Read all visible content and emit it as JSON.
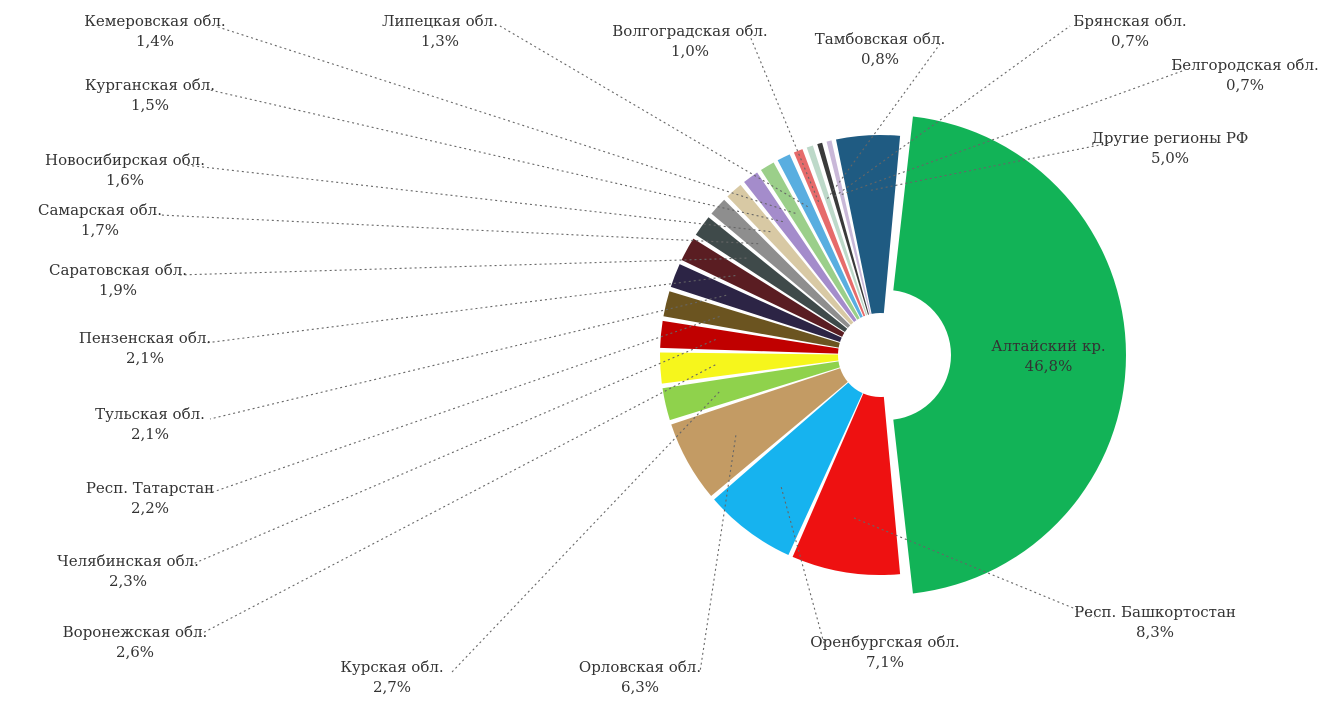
{
  "chart_data": {
    "type": "pie",
    "title": "",
    "slices": [
      {
        "label": "Алтайский кр.",
        "value": 46.8,
        "value_text": "46,8%",
        "color": "#12b357"
      },
      {
        "label": "Респ. Башкортостан",
        "value": 8.3,
        "value_text": "8,3%",
        "color": "#ee1111"
      },
      {
        "label": "Оренбургская обл.",
        "value": 7.1,
        "value_text": "7,1%",
        "color": "#16b3ef"
      },
      {
        "label": "Орловская обл.",
        "value": 6.3,
        "value_text": "6,3%",
        "color": "#c39b64"
      },
      {
        "label": "Курская обл.",
        "value": 2.7,
        "value_text": "2,7%",
        "color": "#8fd24c"
      },
      {
        "label": "Воронежская обл.",
        "value": 2.6,
        "value_text": "2,6%",
        "color": "#f6f61c"
      },
      {
        "label": "Челябинская обл.",
        "value": 2.3,
        "value_text": "2,3%",
        "color": "#c00000"
      },
      {
        "label": "Респ. Татарстан",
        "value": 2.2,
        "value_text": "2,2%",
        "color": "#6b5420"
      },
      {
        "label": "Тульская обл.",
        "value": 2.1,
        "value_text": "2,1%",
        "color": "#2c2445"
      },
      {
        "label": "Пензенская обл.",
        "value": 2.1,
        "value_text": "2,1%",
        "color": "#5a1d22"
      },
      {
        "label": "Саратовская обл.",
        "value": 1.9,
        "value_text": "1,9%",
        "color": "#3f4a4a"
      },
      {
        "label": "Самарская обл.",
        "value": 1.7,
        "value_text": "1,7%",
        "color": "#8e8e8e"
      },
      {
        "label": "Новосибирская обл.",
        "value": 1.6,
        "value_text": "1,6%",
        "color": "#d8c9a4"
      },
      {
        "label": "Курганская обл.",
        "value": 1.5,
        "value_text": "1,5%",
        "color": "#a48ccb"
      },
      {
        "label": "Кемеровская обл.",
        "value": 1.4,
        "value_text": "1,4%",
        "color": "#9bcf8a"
      },
      {
        "label": "Липецкая обл.",
        "value": 1.3,
        "value_text": "1,3%",
        "color": "#59aee0"
      },
      {
        "label": "Волгоградская обл.",
        "value": 1.0,
        "value_text": "1,0%",
        "color": "#e66b6b"
      },
      {
        "label": "Тамбовская обл.",
        "value": 0.8,
        "value_text": "0,8%",
        "color": "#bdd9c9"
      },
      {
        "label": "Брянская обл.",
        "value": 0.7,
        "value_text": "0,7%",
        "color": "#3a3a3a"
      },
      {
        "label": "Белгородская обл.",
        "value": 0.7,
        "value_text": "0,7%",
        "color": "#c9b8d8"
      },
      {
        "label": "Другие регионы РФ",
        "value": 5.0,
        "value_text": "5,0%",
        "color": "#1f5b82"
      }
    ]
  }
}
